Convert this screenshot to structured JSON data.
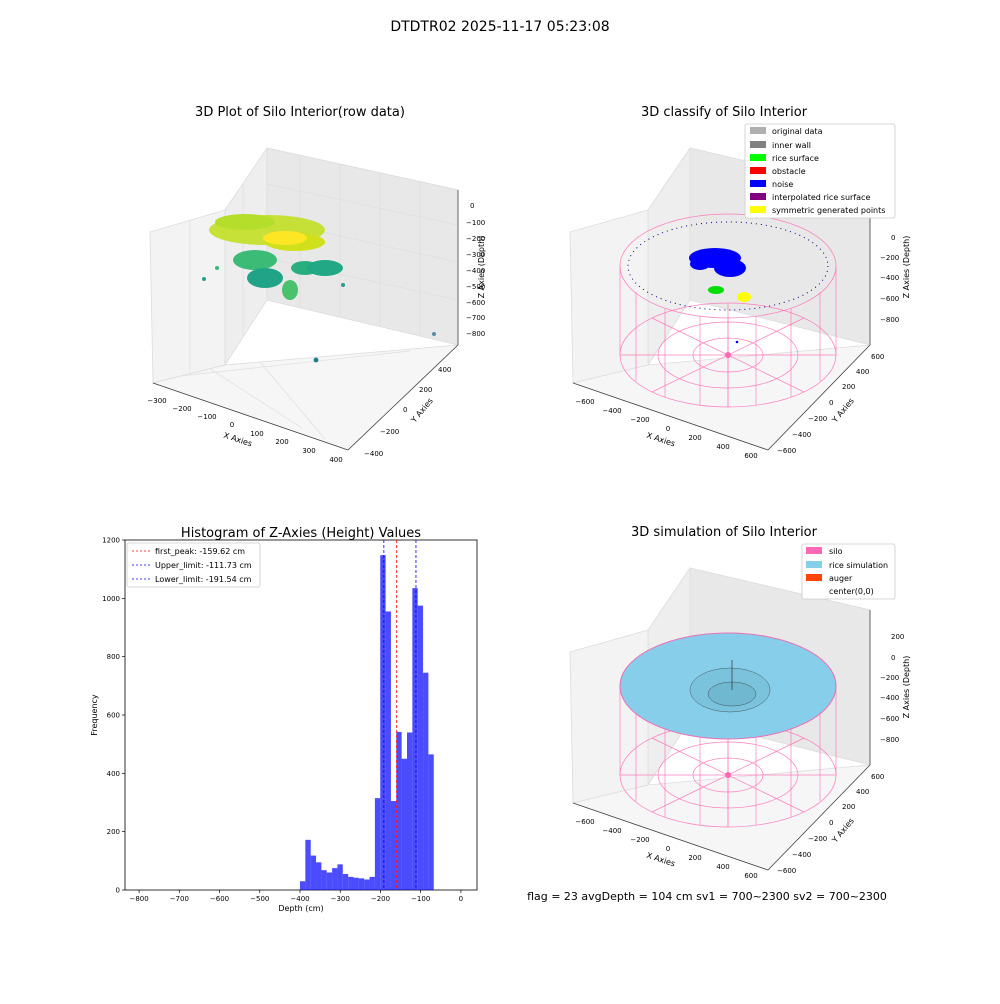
{
  "figure": {
    "suptitle": "DTDTR02 2025-11-17 05:23:08",
    "footer": "flag = 23  avgDepth = 104 cm  sv1 = 700~2300  sv2 = 700~2300"
  },
  "colors": {
    "silo": "#ff69b4",
    "rice_sim": "#87ceeb",
    "hist_bar": "#0000ff",
    "first_peak_line": "#ff0000",
    "limit_line": "#0000ff",
    "pane_back": "#f2f2f2",
    "pane_side": "#ebebeb",
    "pane_floor": "#f7f7f7",
    "grid": "#d9d9d9"
  },
  "panels": {
    "raw": {
      "title": "3D Plot of Silo Interior(row data)",
      "xlabel": "X Axies",
      "ylabel": "Y Axies",
      "zlabel": "Z Axies (Depth)",
      "xticks": [
        "−300",
        "−200",
        "−100",
        "0",
        "100",
        "200",
        "300",
        "400"
      ],
      "yticks": [
        "−400",
        "−200",
        "0",
        "200",
        "400"
      ],
      "zticks": [
        "0",
        "−100",
        "−200",
        "−300",
        "−400",
        "−500",
        "−600",
        "−700",
        "−800"
      ]
    },
    "classify": {
      "title": "3D classify of Silo Interior",
      "xlabel": "X Axies",
      "ylabel": "Y Axies",
      "zlabel": "Z Axies (Depth)",
      "xticks": [
        "−600",
        "−400",
        "−200",
        "0",
        "200",
        "400",
        "600"
      ],
      "yticks": [
        "−600",
        "−400",
        "−200",
        "0",
        "200",
        "400",
        "600"
      ],
      "zticks": [
        "0",
        "−200",
        "−400",
        "−600",
        "−800"
      ],
      "legend": [
        {
          "label": "original data",
          "color": "#b0b0b0"
        },
        {
          "label": "inner wall",
          "color": "#808080"
        },
        {
          "label": "rice surface",
          "color": "#00ff00"
        },
        {
          "label": "obstacle",
          "color": "#ff0000"
        },
        {
          "label": "noise",
          "color": "#0000ff"
        },
        {
          "label": "interpolated rice surface",
          "color": "#800080"
        },
        {
          "label": "symmetric generated points",
          "color": "#ffff00"
        }
      ]
    },
    "simulation": {
      "title": "3D simulation of Silo Interior",
      "xlabel": "X Axies",
      "ylabel": "Y Axies",
      "zlabel": "Z Axies (Depth)",
      "xticks": [
        "−600",
        "−400",
        "−200",
        "0",
        "200",
        "400",
        "600"
      ],
      "yticks": [
        "−600",
        "−400",
        "−200",
        "0",
        "200",
        "400",
        "600"
      ],
      "zticks": [
        "200",
        "0",
        "−200",
        "−400",
        "−600",
        "−800"
      ],
      "legend": [
        {
          "label": "silo",
          "color": "#ff69b4"
        },
        {
          "label": "rice simulation",
          "color": "#87ceeb"
        },
        {
          "label": "auger",
          "color": "#ff4500"
        },
        {
          "label": "center(0,0)",
          "color": "#ffffff"
        }
      ]
    }
  },
  "chart_data": {
    "type": "bar",
    "title": "Histogram of Z-Axies (Height) Values",
    "xlabel": "Depth (cm)",
    "ylabel": "Frequency",
    "xlim": [
      -835,
      40
    ],
    "ylim": [
      0,
      1200
    ],
    "xticks": [
      -800,
      -700,
      -600,
      -500,
      -400,
      -300,
      -200,
      -100,
      0
    ],
    "yticks": [
      0,
      200,
      400,
      600,
      800,
      1000,
      1200
    ],
    "bin_width": 13.3,
    "bins": [
      {
        "start": -400,
        "count": 30
      },
      {
        "start": -386.7,
        "count": 172
      },
      {
        "start": -373.4,
        "count": 118
      },
      {
        "start": -360.1,
        "count": 95
      },
      {
        "start": -346.8,
        "count": 68
      },
      {
        "start": -333.5,
        "count": 60
      },
      {
        "start": -320.2,
        "count": 75
      },
      {
        "start": -306.9,
        "count": 88
      },
      {
        "start": -293.6,
        "count": 55
      },
      {
        "start": -280.3,
        "count": 45
      },
      {
        "start": -267.0,
        "count": 42
      },
      {
        "start": -253.7,
        "count": 40
      },
      {
        "start": -240.4,
        "count": 36
      },
      {
        "start": -227.1,
        "count": 45
      },
      {
        "start": -213.8,
        "count": 315
      },
      {
        "start": -200.5,
        "count": 1148
      },
      {
        "start": -187.2,
        "count": 955
      },
      {
        "start": -173.9,
        "count": 305
      },
      {
        "start": -160.6,
        "count": 542
      },
      {
        "start": -147.3,
        "count": 450
      },
      {
        "start": -134.0,
        "count": 540
      },
      {
        "start": -120.7,
        "count": 1035
      },
      {
        "start": -107.4,
        "count": 975
      },
      {
        "start": -94.1,
        "count": 745
      },
      {
        "start": -80.8,
        "count": 465
      }
    ],
    "vlines": [
      {
        "label": "first_peak: -159.62 cm",
        "x": -159.62,
        "color": "#ff0000"
      },
      {
        "label": "Upper_limit: -111.73 cm",
        "x": -111.73,
        "color": "#0000ff"
      },
      {
        "label": "Lower_limit: -191.54 cm",
        "x": -191.54,
        "color": "#0000ff"
      }
    ]
  }
}
